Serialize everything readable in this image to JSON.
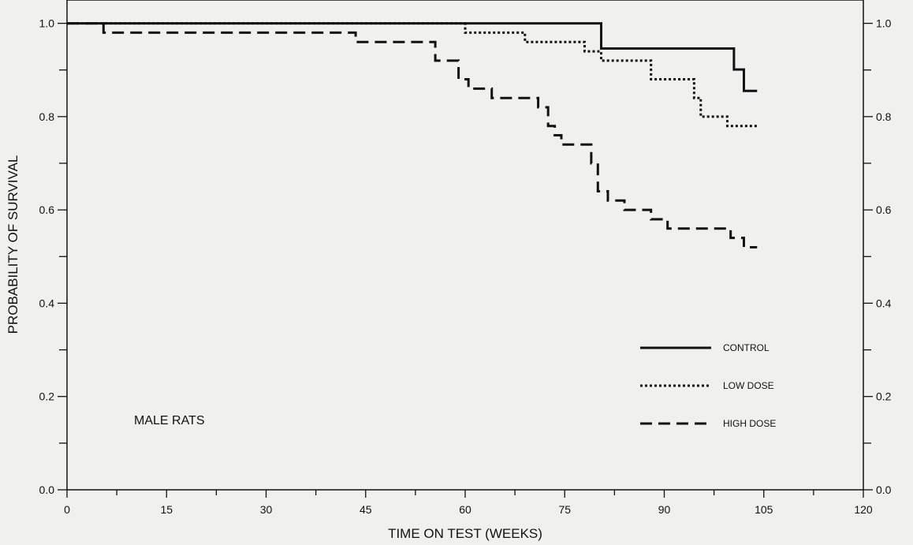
{
  "chart_data": {
    "type": "line",
    "subtype": "step",
    "xlabel": "TIME ON TEST (WEEKS)",
    "ylabel": "PROBABILITY OF SURVIVAL",
    "xlim": [
      0,
      120
    ],
    "ylim": [
      0,
      1.05
    ],
    "x_ticks": [
      "0",
      "15",
      "30",
      "45",
      "60",
      "75",
      "90",
      "105",
      "120"
    ],
    "y_ticks_left": [
      "0.0",
      "0.2",
      "0.4",
      "0.6",
      "0.8",
      "1.0"
    ],
    "y_ticks_right": [
      "0.0",
      "0.2",
      "0.4",
      "0.6",
      "0.8",
      "1.0"
    ],
    "annotation": "MALE RATS",
    "legend_position": "lower-right",
    "series": [
      {
        "name": "CONTROL",
        "style": "solid",
        "points": [
          [
            0,
            1.0
          ],
          [
            80.5,
            1.0
          ],
          [
            80.5,
            0.946
          ],
          [
            100.5,
            0.946
          ],
          [
            100.5,
            0.901
          ],
          [
            102,
            0.901
          ],
          [
            102,
            0.855
          ],
          [
            104,
            0.855
          ]
        ]
      },
      {
        "name": "LOW DOSE",
        "style": "dotted",
        "points": [
          [
            0,
            1.0
          ],
          [
            60,
            1.0
          ],
          [
            60,
            0.98
          ],
          [
            69,
            0.98
          ],
          [
            69,
            0.96
          ],
          [
            78,
            0.96
          ],
          [
            78,
            0.94
          ],
          [
            80.5,
            0.94
          ],
          [
            80.5,
            0.92
          ],
          [
            88,
            0.92
          ],
          [
            88,
            0.88
          ],
          [
            94.5,
            0.88
          ],
          [
            94.5,
            0.84
          ],
          [
            95.5,
            0.84
          ],
          [
            95.5,
            0.8
          ],
          [
            99.5,
            0.8
          ],
          [
            99.5,
            0.78
          ],
          [
            104,
            0.78
          ]
        ]
      },
      {
        "name": "HIGH DOSE",
        "style": "dashed",
        "points": [
          [
            0,
            1.0
          ],
          [
            5.5,
            1.0
          ],
          [
            5.5,
            0.98
          ],
          [
            43.5,
            0.98
          ],
          [
            43.5,
            0.96
          ],
          [
            55.5,
            0.96
          ],
          [
            55.5,
            0.92
          ],
          [
            59,
            0.92
          ],
          [
            59,
            0.88
          ],
          [
            60.5,
            0.88
          ],
          [
            60.5,
            0.86
          ],
          [
            64,
            0.86
          ],
          [
            64,
            0.84
          ],
          [
            71,
            0.84
          ],
          [
            71,
            0.82
          ],
          [
            72.5,
            0.82
          ],
          [
            72.5,
            0.78
          ],
          [
            73.5,
            0.78
          ],
          [
            73.5,
            0.76
          ],
          [
            74.5,
            0.76
          ],
          [
            74.5,
            0.74
          ],
          [
            79,
            0.74
          ],
          [
            79,
            0.7
          ],
          [
            80,
            0.7
          ],
          [
            80,
            0.64
          ],
          [
            81.5,
            0.64
          ],
          [
            81.5,
            0.62
          ],
          [
            84,
            0.62
          ],
          [
            84,
            0.6
          ],
          [
            88,
            0.6
          ],
          [
            88,
            0.58
          ],
          [
            90.5,
            0.58
          ],
          [
            90.5,
            0.56
          ],
          [
            100,
            0.56
          ],
          [
            100,
            0.54
          ],
          [
            102,
            0.54
          ],
          [
            102,
            0.52
          ],
          [
            104,
            0.52
          ]
        ]
      }
    ]
  }
}
